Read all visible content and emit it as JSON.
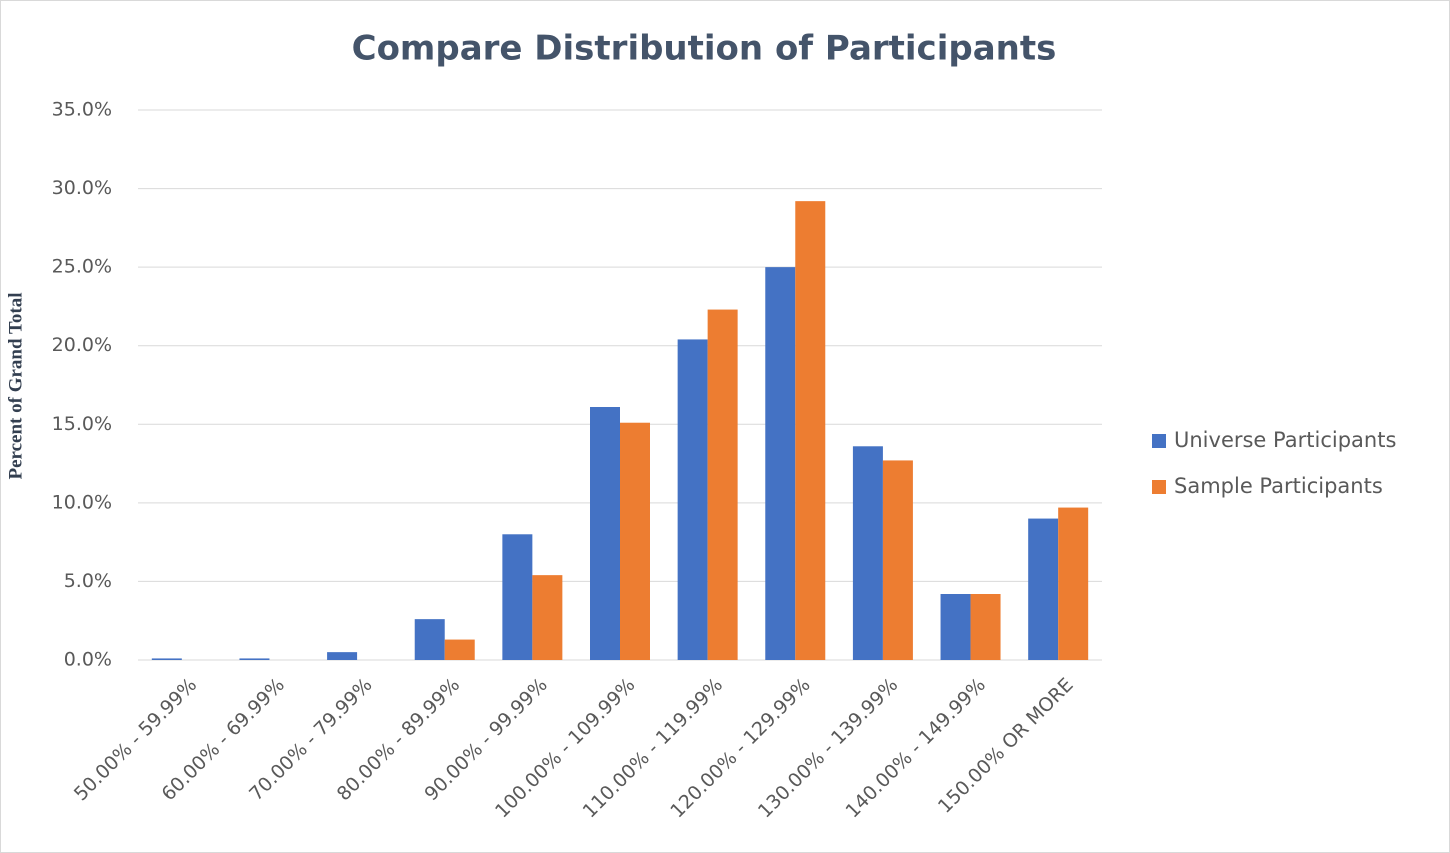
{
  "chart_data": {
    "type": "bar",
    "title": "Compare  Distribution  of Participants",
    "y_label": "Percent of Grand Total",
    "categories": [
      "50.00% - 59.99%",
      "60.00% - 69.99%",
      "70.00% - 79.99%",
      "80.00% - 89.99%",
      "90.00% - 99.99%",
      "100.00% - 109.99%",
      "110.00% - 119.99%",
      "120.00% - 129.99%",
      "130.00% - 139.99%",
      "140.00% - 149.99%",
      "150.00% OR MORE"
    ],
    "series": [
      {
        "name": "Universe Participants",
        "color": "#4472c4",
        "values": [
          0.1,
          0.1,
          0.5,
          2.6,
          8.0,
          16.1,
          20.4,
          25.0,
          13.6,
          4.2,
          9.0
        ]
      },
      {
        "name": "Sample Participants",
        "color": "#ed7d31",
        "values": [
          0,
          0,
          0,
          1.3,
          5.4,
          15.1,
          22.3,
          29.2,
          12.7,
          4.2,
          9.7
        ]
      }
    ],
    "ylim": [
      0,
      35
    ],
    "yticks": [
      {
        "value": 0,
        "label": "0.0%"
      },
      {
        "value": 5,
        "label": "5.0%"
      },
      {
        "value": 10,
        "label": "10.0%"
      },
      {
        "value": 15,
        "label": "15.0%"
      },
      {
        "value": 20,
        "label": "20.0%"
      },
      {
        "value": 25,
        "label": "25.0%"
      },
      {
        "value": 30,
        "label": "30.0%"
      },
      {
        "value": 35,
        "label": "35.0%"
      }
    ],
    "grid": true,
    "legend": "right"
  }
}
